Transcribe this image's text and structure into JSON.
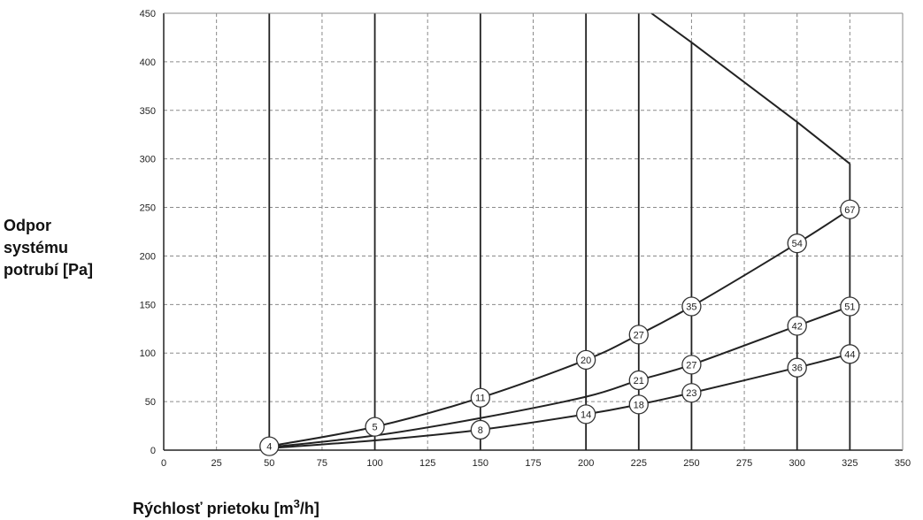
{
  "chart_data": {
    "type": "line",
    "xlabel": "Rýchlosť prietoku [m³/h]",
    "xlabel_parts": {
      "pre": "Rýchlosť prietoku [m",
      "sup": "3",
      "post": "/h]"
    },
    "ylabel_lines": [
      "Odpor",
      "systému",
      "potrubí [Pa]"
    ],
    "xlim": [
      0,
      350
    ],
    "ylim": [
      0,
      450
    ],
    "x_ticks": [
      0,
      25,
      50,
      75,
      100,
      125,
      150,
      175,
      200,
      225,
      250,
      275,
      300,
      325,
      350
    ],
    "y_ticks": [
      0,
      50,
      100,
      150,
      200,
      250,
      300,
      350,
      400,
      450
    ],
    "grid": true,
    "vertical_lines": [
      {
        "x": 50,
        "ymax": 450
      },
      {
        "x": 100,
        "ymax": 450
      },
      {
        "x": 150,
        "ymax": 450
      },
      {
        "x": 200,
        "ymax": 450
      },
      {
        "x": 225,
        "ymax": 450
      },
      {
        "x": 250,
        "ymax": 420
      },
      {
        "x": 300,
        "ymax": 338
      },
      {
        "x": 325,
        "ymax": 295
      }
    ],
    "limit_line": {
      "x": [
        231,
        250,
        300,
        325
      ],
      "y": [
        450,
        420,
        338,
        295
      ]
    },
    "series": [
      {
        "x": [
          50,
          100,
          150,
          200,
          225,
          250,
          300,
          325
        ],
        "y": [
          4,
          24,
          54,
          93,
          119,
          148,
          213,
          248
        ],
        "labels": [
          "4",
          "5",
          "11",
          "20",
          "27",
          "35",
          "54",
          "67"
        ],
        "marker_x": [
          50,
          100,
          150,
          200,
          225,
          250,
          300,
          325
        ],
        "marker_y": [
          4,
          24,
          54,
          93,
          119,
          148,
          213,
          248
        ]
      },
      {
        "x": [
          50,
          100,
          150,
          200,
          225,
          250,
          300,
          325
        ],
        "y": [
          3,
          15,
          33,
          55,
          72,
          88,
          128,
          148
        ],
        "labels": [
          "21",
          "27",
          "42",
          "51"
        ],
        "marker_x": [
          225,
          250,
          300,
          325
        ],
        "marker_y": [
          72,
          88,
          128,
          148
        ]
      },
      {
        "x": [
          50,
          100,
          150,
          200,
          225,
          250,
          300,
          325
        ],
        "y": [
          2,
          10,
          21,
          37,
          47,
          59,
          85,
          99
        ],
        "labels": [
          "8",
          "14",
          "18",
          "23",
          "36",
          "44"
        ],
        "marker_x": [
          150,
          200,
          225,
          250,
          300,
          325
        ],
        "marker_y": [
          21,
          37,
          47,
          59,
          85,
          99
        ]
      }
    ]
  }
}
